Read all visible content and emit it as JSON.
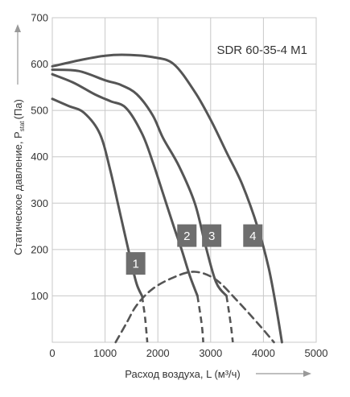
{
  "chart_data": {
    "type": "line",
    "title": "SDR 60-35-4 M1",
    "xlabel": {
      "main": "Расход воздуха, L (м³/ч)"
    },
    "ylabel": {
      "main": "Статическое давление, P",
      "sub": "stat",
      "unit": "(Па)"
    },
    "xlim": [
      0,
      5000
    ],
    "ylim": [
      0,
      700
    ],
    "x_ticks": [
      0,
      1000,
      2000,
      3000,
      4000,
      5000
    ],
    "y_ticks": [
      100,
      200,
      300,
      400,
      500,
      600,
      700
    ],
    "grid": true,
    "series": [
      {
        "name": "1",
        "points": [
          [
            0,
            525
          ],
          [
            300,
            510
          ],
          [
            600,
            495
          ],
          [
            900,
            450
          ],
          [
            1100,
            370
          ],
          [
            1300,
            270
          ],
          [
            1500,
            170
          ],
          [
            1600,
            125
          ],
          [
            1700,
            100
          ]
        ],
        "dashed_tail": [
          [
            1700,
            100
          ],
          [
            1760,
            50
          ],
          [
            1800,
            0
          ]
        ],
        "label_at": [
          1580,
          170
        ],
        "color": "#555555"
      },
      {
        "name": "2",
        "points": [
          [
            0,
            578
          ],
          [
            400,
            560
          ],
          [
            800,
            535
          ],
          [
            1100,
            520
          ],
          [
            1400,
            505
          ],
          [
            1700,
            450
          ],
          [
            1900,
            390
          ],
          [
            2100,
            320
          ],
          [
            2300,
            250
          ],
          [
            2450,
            200
          ],
          [
            2600,
            145
          ],
          [
            2750,
            100
          ]
        ],
        "dashed_tail": [
          [
            2750,
            100
          ],
          [
            2830,
            40
          ],
          [
            2860,
            0
          ]
        ],
        "label_at": [
          2550,
          230
        ],
        "color": "#555555"
      },
      {
        "name": "3",
        "points": [
          [
            0,
            588
          ],
          [
            500,
            585
          ],
          [
            1000,
            565
          ],
          [
            1300,
            555
          ],
          [
            1600,
            535
          ],
          [
            1900,
            490
          ],
          [
            2100,
            440
          ],
          [
            2400,
            380
          ],
          [
            2700,
            300
          ],
          [
            2900,
            210
          ],
          [
            3100,
            130
          ],
          [
            3300,
            100
          ]
        ],
        "dashed_tail": [
          [
            3300,
            100
          ],
          [
            3380,
            40
          ],
          [
            3420,
            0
          ]
        ],
        "label_at": [
          3020,
          230
        ],
        "color": "#555555"
      },
      {
        "name": "4",
        "points": [
          [
            0,
            595
          ],
          [
            500,
            608
          ],
          [
            1000,
            618
          ],
          [
            1400,
            620
          ],
          [
            1900,
            615
          ],
          [
            2300,
            600
          ],
          [
            2700,
            540
          ],
          [
            3000,
            480
          ],
          [
            3300,
            410
          ],
          [
            3600,
            340
          ],
          [
            3900,
            245
          ],
          [
            4100,
            160
          ],
          [
            4250,
            70
          ],
          [
            4350,
            0
          ]
        ],
        "label_at": [
          3800,
          230
        ],
        "color": "#555555"
      }
    ],
    "envelope": {
      "style": "dashed",
      "points": [
        [
          1200,
          0
        ],
        [
          1400,
          40
        ],
        [
          1600,
          80
        ],
        [
          1900,
          115
        ],
        [
          2300,
          140
        ],
        [
          2700,
          152
        ],
        [
          3100,
          135
        ],
        [
          3500,
          90
        ],
        [
          3900,
          40
        ],
        [
          4200,
          0
        ]
      ]
    }
  }
}
